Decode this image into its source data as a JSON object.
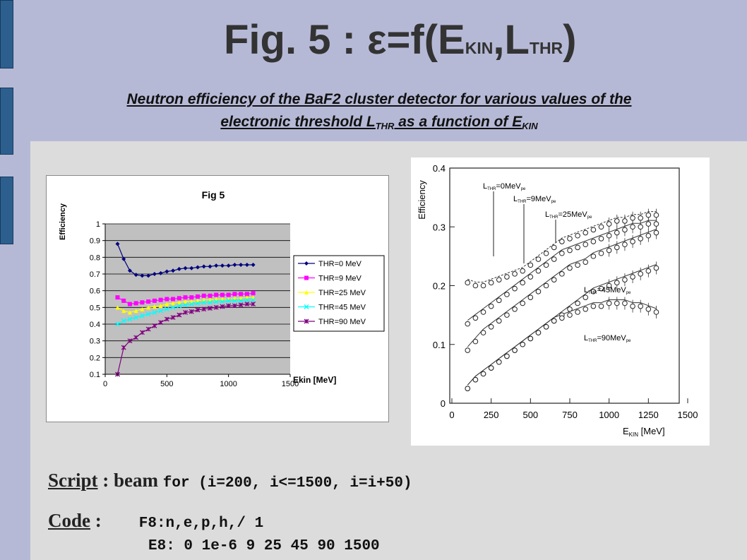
{
  "slide": {
    "title_main": "Fig. 5 : ε=f(E",
    "title_sub1": "KIN",
    "title_mid": ",L",
    "title_sub2": "THR",
    "title_end": ")",
    "subtitle_line1": "Neutron efficiency of the BaF2 cluster detector for various values of the",
    "subtitle_line2_a": "electronic threshold L",
    "subtitle_line2_sub1": "THR",
    "subtitle_line2_b": " as a function of E",
    "subtitle_line2_sub2": "KIN",
    "script_label": "Script",
    "script_sep": " : beam ",
    "script_code": "for (i=200, i<=1500, i=i+50)",
    "code_label": "Code",
    "code_sep": " :",
    "code_line1": "F8:n,e,p,h,/ 1",
    "code_line2": "E8: 0 1e-6 9 25 45 90 1500"
  },
  "chart_data": [
    {
      "type": "line",
      "title": "Fig 5",
      "xlabel": "Ekin [MeV]",
      "ylabel": "Efficiency",
      "xlim": [
        0,
        1500
      ],
      "ylim": [
        0.1,
        1
      ],
      "x_ticks": [
        "0",
        "500",
        "1000",
        "1500"
      ],
      "y_ticks": [
        "0.1",
        "0.2",
        "0.3",
        "0.4",
        "0.5",
        "0.6",
        "0.7",
        "0.8",
        "0.9",
        "1"
      ],
      "grid": true,
      "legend_position": "right",
      "plot_background": "#c0c0c0",
      "x": [
        100,
        150,
        200,
        250,
        300,
        350,
        400,
        450,
        500,
        550,
        600,
        650,
        700,
        750,
        800,
        850,
        900,
        950,
        1000,
        1050,
        1100,
        1150,
        1200
      ],
      "series": [
        {
          "name": "THR=0 MeV",
          "color": "#000080",
          "marker": "diamond",
          "values": [
            0.88,
            0.79,
            0.72,
            0.695,
            0.69,
            0.69,
            0.7,
            0.705,
            0.715,
            0.72,
            0.73,
            0.735,
            0.735,
            0.74,
            0.745,
            0.745,
            0.75,
            0.75,
            0.75,
            0.755,
            0.755,
            0.755,
            0.755
          ]
        },
        {
          "name": "THR=9 MeV",
          "color": "#ff00ff",
          "marker": "square",
          "values": [
            0.56,
            0.54,
            0.52,
            0.525,
            0.53,
            0.535,
            0.54,
            0.545,
            0.55,
            0.55,
            0.555,
            0.56,
            0.56,
            0.565,
            0.57,
            0.57,
            0.575,
            0.575,
            0.575,
            0.58,
            0.58,
            0.58,
            0.585
          ]
        },
        {
          "name": "THR=25 MeV",
          "color": "#ffff00",
          "marker": "triangle",
          "values": [
            0.5,
            0.48,
            0.47,
            0.48,
            0.49,
            0.5,
            0.505,
            0.51,
            0.52,
            0.525,
            0.53,
            0.535,
            0.535,
            0.54,
            0.545,
            0.545,
            0.55,
            0.55,
            0.55,
            0.555,
            0.555,
            0.56,
            0.56
          ]
        },
        {
          "name": "THR=45 MeV",
          "color": "#00ffff",
          "marker": "x",
          "values": [
            0.4,
            0.42,
            0.43,
            0.44,
            0.45,
            0.46,
            0.47,
            0.48,
            0.49,
            0.5,
            0.51,
            0.515,
            0.52,
            0.525,
            0.53,
            0.53,
            0.535,
            0.535,
            0.54,
            0.54,
            0.54,
            0.545,
            0.545
          ]
        },
        {
          "name": "THR=90 MeV",
          "color": "#800080",
          "marker": "star",
          "values": [
            0.1,
            0.26,
            0.3,
            0.32,
            0.35,
            0.37,
            0.39,
            0.41,
            0.43,
            0.44,
            0.455,
            0.47,
            0.475,
            0.485,
            0.49,
            0.495,
            0.5,
            0.505,
            0.51,
            0.51,
            0.515,
            0.52,
            0.52
          ]
        }
      ]
    },
    {
      "type": "scatter",
      "xlabel": "E",
      "xlabel_sub": "KIN",
      "xlabel_unit": " [MeV]",
      "ylabel": "Efficiency",
      "xlim": [
        0,
        1500
      ],
      "ylim": [
        0,
        0.4
      ],
      "x_ticks": [
        "0",
        "250",
        "500",
        "750",
        "1000",
        "1250",
        "1500"
      ],
      "y_ticks": [
        "0",
        "0.1",
        "0.2",
        "0.3",
        "0.4"
      ],
      "grid": false,
      "annotations": [
        {
          "pre": "L",
          "sub": "THR",
          "post": "=0MeV",
          "sub2": "pe"
        },
        {
          "pre": "L",
          "sub": "THR",
          "post": "=9MeV",
          "sub2": "pe"
        },
        {
          "pre": "L",
          "sub": "THR",
          "post": "=25MeV",
          "sub2": "pe"
        },
        {
          "pre": "L",
          "sub": "THR",
          "post": "=45MeV",
          "sub2": "pe"
        },
        {
          "pre": "L",
          "sub": "THR",
          "post": "=90MeV",
          "sub2": "pe"
        }
      ],
      "x": [
        100,
        150,
        200,
        250,
        300,
        350,
        400,
        450,
        500,
        550,
        600,
        650,
        700,
        750,
        800,
        850,
        900,
        950,
        1000,
        1050,
        1100,
        1150,
        1200,
        1250,
        1300
      ],
      "series": [
        {
          "values": [
            0.205,
            0.2,
            0.2,
            0.205,
            0.21,
            0.215,
            0.22,
            0.225,
            0.235,
            0.245,
            0.255,
            0.265,
            0.275,
            0.28,
            0.285,
            0.29,
            0.295,
            0.3,
            0.305,
            0.31,
            0.31,
            0.315,
            0.315,
            0.32,
            0.32
          ]
        },
        {
          "values": [
            0.135,
            0.145,
            0.155,
            0.165,
            0.175,
            0.185,
            0.195,
            0.205,
            0.215,
            0.225,
            0.235,
            0.245,
            0.255,
            0.26,
            0.265,
            0.27,
            0.275,
            0.28,
            0.285,
            0.29,
            0.295,
            0.3,
            0.3,
            0.305,
            0.305
          ]
        },
        {
          "values": [
            0.09,
            0.105,
            0.12,
            0.13,
            0.14,
            0.15,
            0.16,
            0.17,
            0.18,
            0.19,
            0.2,
            0.21,
            0.22,
            0.23,
            0.235,
            0.24,
            0.25,
            0.255,
            0.26,
            0.265,
            0.27,
            0.275,
            0.28,
            0.285,
            0.29
          ]
        },
        {
          "values": [
            0.025,
            0.04,
            0.05,
            0.06,
            0.07,
            0.08,
            0.09,
            0.1,
            0.11,
            0.12,
            0.13,
            0.14,
            0.15,
            0.16,
            0.17,
            0.18,
            0.19,
            0.195,
            0.2,
            0.205,
            0.21,
            0.215,
            0.22,
            0.225,
            0.23
          ]
        },
        {
          "values": [
            0.025,
            0.04,
            0.05,
            0.06,
            0.07,
            0.08,
            0.09,
            0.1,
            0.11,
            0.12,
            0.13,
            0.14,
            0.145,
            0.15,
            0.155,
            0.16,
            0.165,
            0.165,
            0.17,
            0.17,
            0.17,
            0.165,
            0.165,
            0.16,
            0.155
          ]
        }
      ]
    }
  ]
}
